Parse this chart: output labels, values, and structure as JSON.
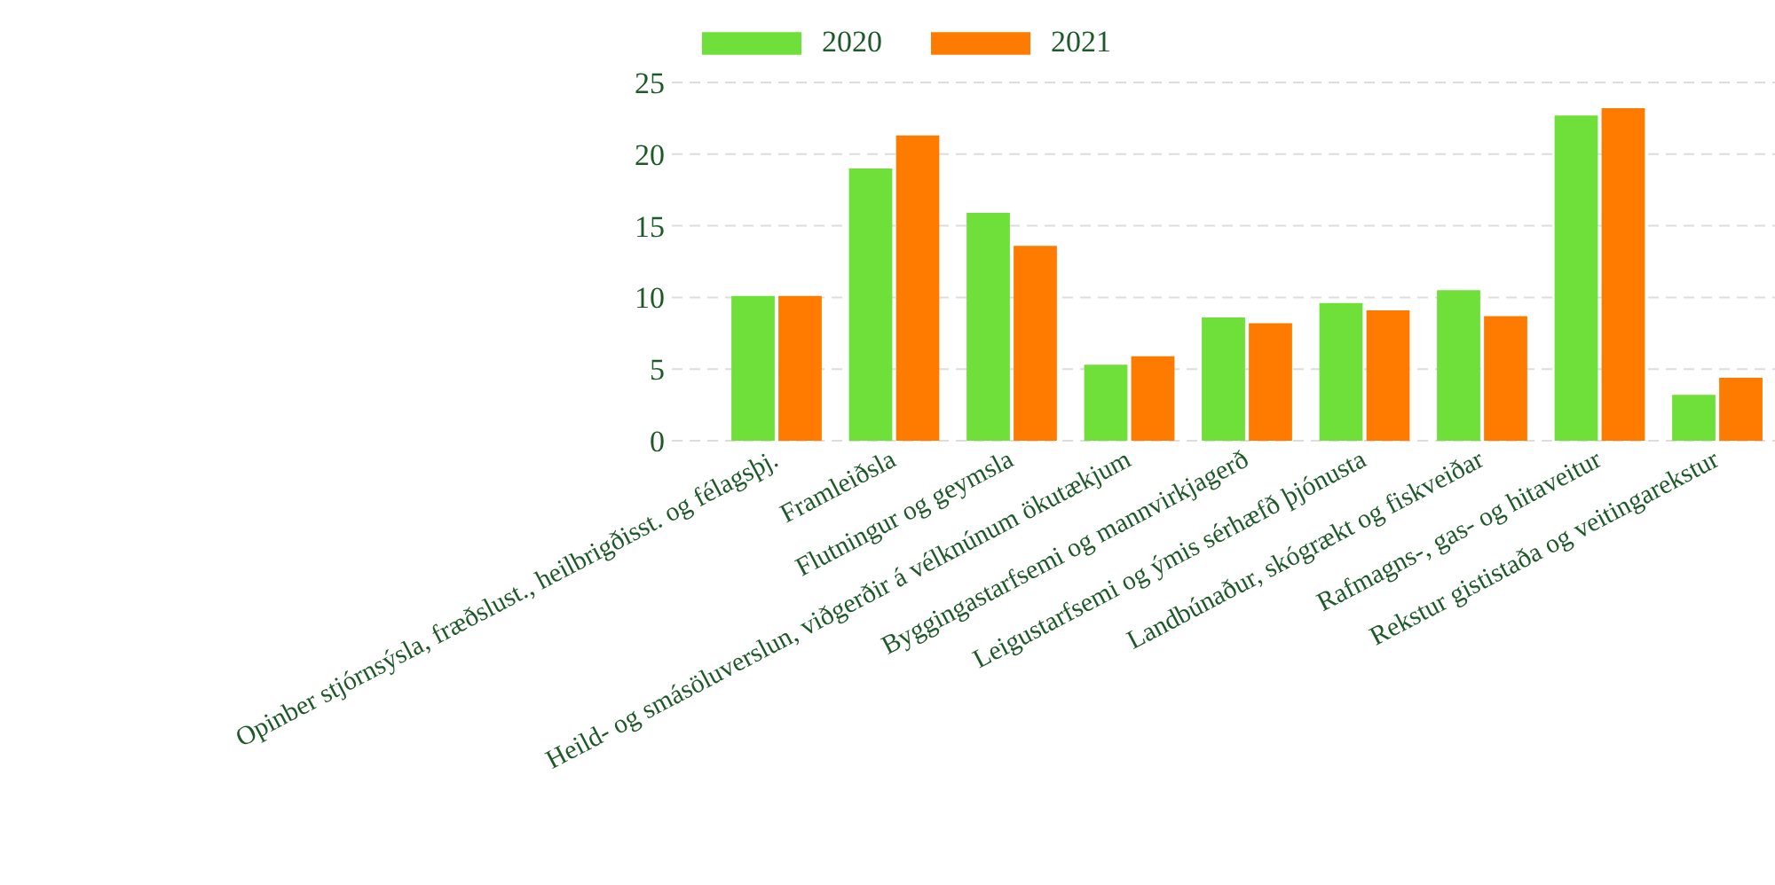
{
  "chart_data": {
    "type": "bar",
    "categories": [
      "Opinber stjórnsýsla, fræðslust., heilbrigðisst. og félagsþj.",
      "Framleiðsla",
      "Flutningur og geymsla",
      "Heild- og smásöluverslun, viðgerðir á vélknúnum ökutækjum",
      "Byggingastarfsemi og mannvirkjagerð",
      "Leigustarfsemi og ýmis sérhæfð þjónusta",
      "Landbúnaður, skógrækt og fiskveiðar",
      "Rafmagns-, gas- og hitaveitur",
      "Rekstur gististaða og veitingarekstur"
    ],
    "series": [
      {
        "name": "2020",
        "color": "#6fdf3a",
        "values": [
          10.1,
          19.0,
          15.9,
          5.3,
          8.6,
          9.6,
          10.5,
          22.7,
          3.2
        ]
      },
      {
        "name": "2021",
        "color": "#ff7b00",
        "values": [
          10.1,
          21.3,
          13.6,
          5.9,
          8.2,
          9.1,
          8.7,
          23.2,
          4.4
        ]
      }
    ],
    "ylim": [
      0,
      25
    ],
    "yticks": [
      0,
      5,
      10,
      15,
      20,
      25
    ],
    "grid": "y",
    "legend": "top"
  }
}
